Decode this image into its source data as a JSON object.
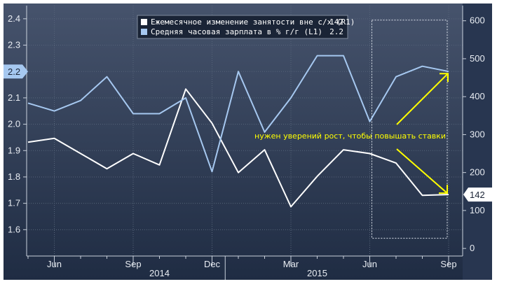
{
  "chart_data": {
    "type": "line",
    "x": [
      "May 2014",
      "Jun 2014",
      "Jul 2014",
      "Aug 2014",
      "Sep 2014",
      "Oct 2014",
      "Nov 2014",
      "Dec 2014",
      "Jan 2015",
      "Feb 2015",
      "Mar 2015",
      "Apr 2015",
      "May 2015",
      "Jun 2015",
      "Jul 2015",
      "Aug 2015",
      "Sep 2015"
    ],
    "x_tick_labels": [
      {
        "x": "Jun 2014",
        "label": "Jun"
      },
      {
        "x": "Sep 2014",
        "label": "Sep"
      },
      {
        "x": "Dec 2014",
        "label": "Dec"
      },
      {
        "x": "Mar 2015",
        "label": "Mar"
      },
      {
        "x": "Jun 2015",
        "label": "Jun"
      },
      {
        "x": "Sep 2015",
        "label": "Sep"
      }
    ],
    "year_labels": [
      {
        "x": "Oct 2014",
        "label": "2014"
      },
      {
        "x": "Apr 2015",
        "label": "2015"
      }
    ],
    "series": [
      {
        "name": "Ежемесячное изменение занятости вне с/х (R1)",
        "axis": "right",
        "color": "#ffffff",
        "last_label": "142",
        "x": [
          "May 2014",
          "Jun 2014",
          "Jul 2014",
          "Aug 2014",
          "Sep 2014",
          "Oct 2014",
          "Nov 2014",
          "Dec 2014",
          "Jan 2015",
          "Feb 2015",
          "Mar 2015",
          "Apr 2015",
          "May 2015",
          "Jun 2015",
          "Jul 2015",
          "Aug 2015",
          "Sep 2015"
        ],
        "values": [
          280,
          290,
          250,
          210,
          250,
          220,
          420,
          330,
          200,
          260,
          110,
          190,
          260,
          250,
          225,
          140,
          142
        ]
      },
      {
        "name": "Средняя часовая зарплата в % г/г (L1)",
        "axis": "left",
        "color": "#a6c8f0",
        "last_label": "2.2",
        "x": [
          "May 2014",
          "Jun 2014",
          "Jul 2014",
          "Aug 2014",
          "Sep 2014",
          "Oct 2014",
          "Nov 2014",
          "Dec 2014",
          "Jan 2015",
          "Feb 2015",
          "Mar 2015",
          "Apr 2015",
          "May 2015",
          "Jun 2015",
          "Jul 2015",
          "Aug 2015",
          "Sep 2015"
        ],
        "values": [
          2.08,
          2.05,
          2.09,
          2.18,
          2.04,
          2.04,
          2.1,
          1.82,
          2.2,
          1.97,
          2.1,
          2.26,
          2.26,
          2.01,
          2.18,
          2.22,
          2.2
        ]
      }
    ],
    "y_left": {
      "ylim": [
        1.5,
        2.45
      ],
      "ticks": [
        "1.6",
        "1.7",
        "1.8",
        "1.9",
        "2.0",
        "2.1",
        "2.2",
        "2.3",
        "2.4"
      ]
    },
    "y_right": {
      "ylim": [
        -20,
        640
      ],
      "ticks": [
        "0",
        "100",
        "200",
        "300",
        "400",
        "500",
        "600"
      ]
    },
    "legend": {
      "position": "top-center",
      "items": [
        {
          "label": "Ежемесячное изменение занятости вне с/х (R1)",
          "value": "142",
          "color": "#ffffff"
        },
        {
          "label": "Средняя часовая зарплата в % г/г (L1)",
          "value": "2.2",
          "color": "#a6c8f0"
        }
      ]
    },
    "annotation": {
      "text": "нужен уверений рост, чтобы повышать ставки",
      "color": "#ffff00"
    },
    "highlight_range": {
      "from": "Jun 2015",
      "to": "Sep 2015"
    },
    "grid": true,
    "colors": {
      "background": "#2c3a52",
      "annotation": "#ffff00"
    }
  }
}
